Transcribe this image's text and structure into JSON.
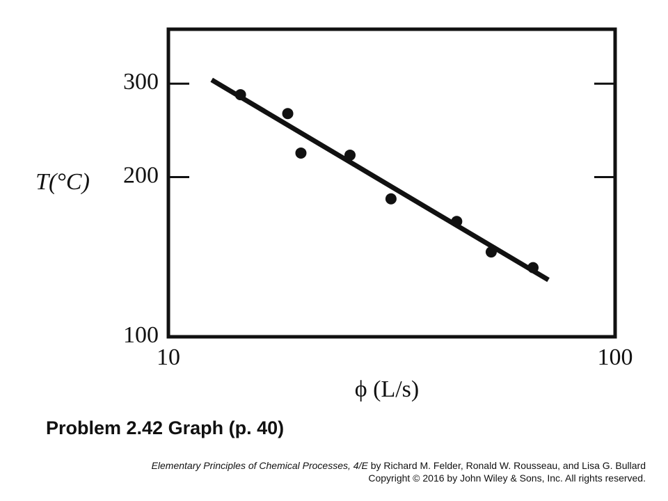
{
  "chart_data": {
    "type": "scatter",
    "x_label": "ϕ (L/s)",
    "y_label": "T(°C)",
    "x": [
      14.5,
      18.5,
      19.8,
      25.5,
      31.5,
      44.2,
      52.8,
      65.5
    ],
    "y": [
      286,
      263.5,
      222,
      220,
      182,
      165,
      144.5,
      135
    ],
    "color": "#111111",
    "fit_line": {
      "x": [
        12.5,
        70.9
      ],
      "y": [
        305,
        128
      ]
    },
    "xlim": [
      10,
      100
    ],
    "ylim": [
      100,
      380
    ],
    "xticks": [
      10,
      100
    ],
    "yticks": [
      100,
      200,
      300
    ],
    "x_log": true,
    "y_log": true,
    "grid": false
  },
  "caption": "Problem 2.42 Graph  (p. 40)",
  "footer": {
    "book_title": "Elementary Principles of Chemical Processes, 4/E",
    "authors": "by Richard M. Felder, Ronald W. Rousseau, and Lisa G. Bullard",
    "copyright": "Copyright © 2016 by John Wiley & Sons, Inc.  All rights reserved."
  }
}
